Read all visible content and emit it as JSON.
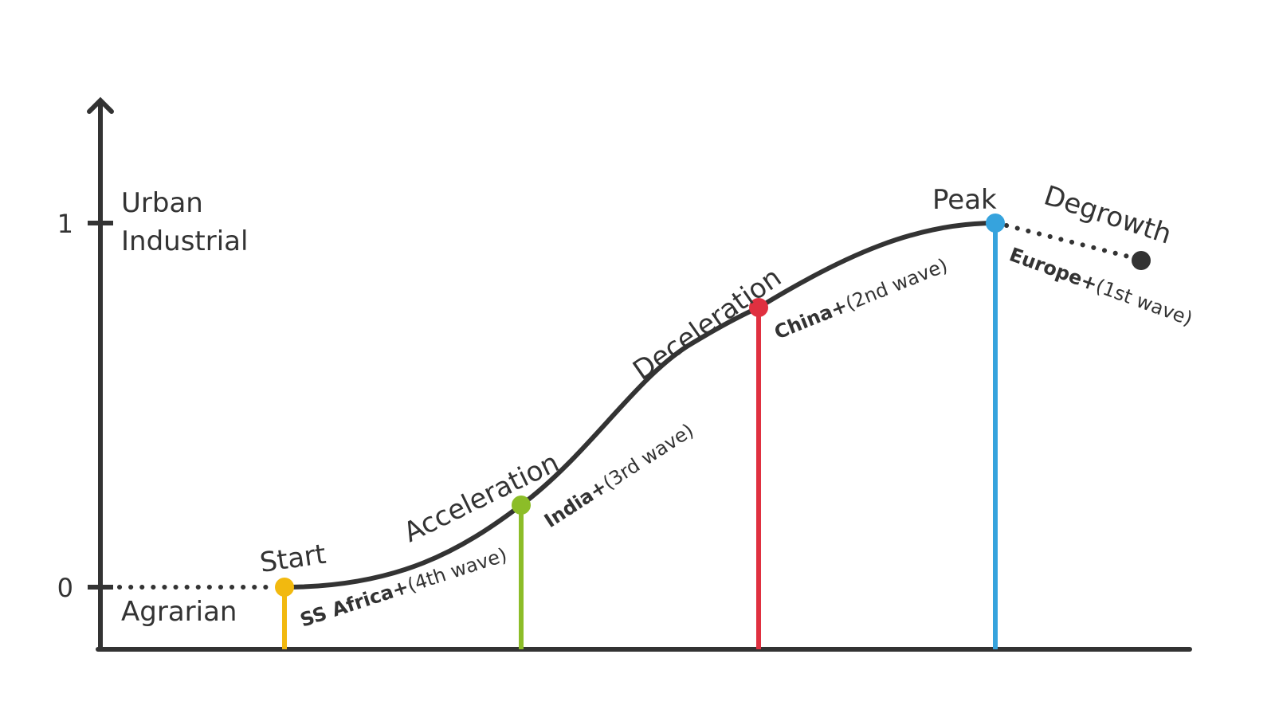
{
  "y_axis": {
    "ticks": [
      "0",
      "1"
    ]
  },
  "levels": {
    "top": [
      "Urban",
      "Industrial"
    ],
    "bottom": "Agrarian"
  },
  "stages": [
    {
      "label": "Start"
    },
    {
      "label": "Acceleration"
    },
    {
      "label": "Deceleration"
    },
    {
      "label": "Peak"
    },
    {
      "label": "Degrowth"
    }
  ],
  "waves": [
    {
      "region": "SS Africa+",
      "wave": "(4th wave)"
    },
    {
      "region": "India+",
      "wave": "(3rd  wave)"
    },
    {
      "region": "China+",
      "wave": "(2nd wave)"
    },
    {
      "region": "Europe+",
      "wave": "(1st wave)"
    }
  ]
}
